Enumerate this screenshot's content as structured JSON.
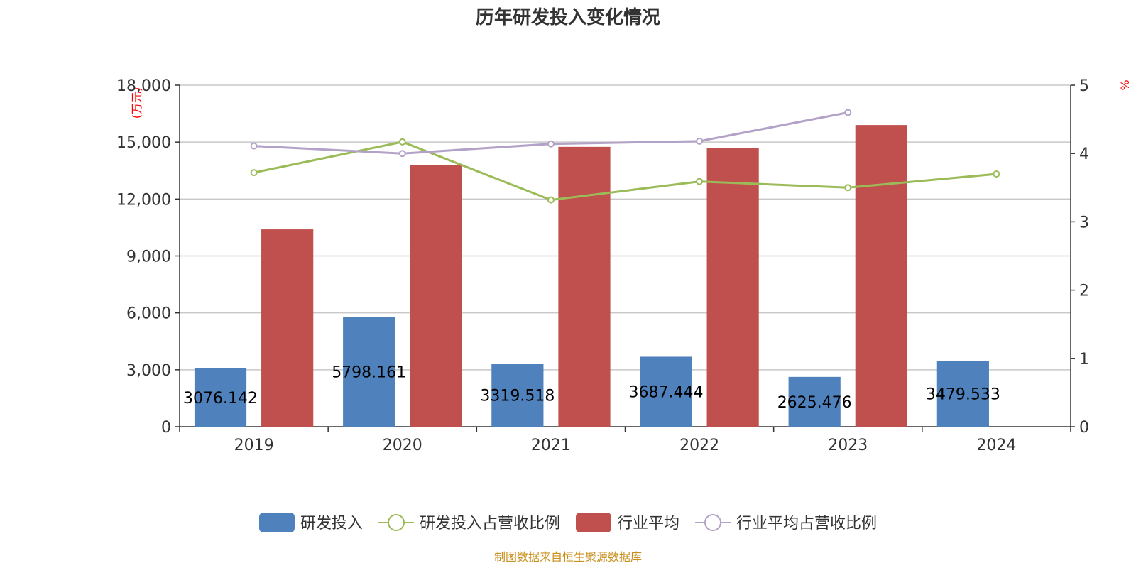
{
  "chart_data": {
    "type": "bar",
    "title": "历年研发投入变化情况",
    "categories": [
      "2019",
      "2020",
      "2021",
      "2022",
      "2023",
      "2024"
    ],
    "y_left": {
      "unit": "(万元)",
      "ylim": [
        0,
        18000
      ],
      "ticks": [
        "0",
        "3,000",
        "6,000",
        "9,000",
        "12,000",
        "15,000",
        "18,000"
      ]
    },
    "y_right": {
      "unit": "%",
      "ylim": [
        0,
        5
      ],
      "ticks": [
        "0",
        "1",
        "2",
        "3",
        "4",
        "5"
      ]
    },
    "series": [
      {
        "name": "研发投入",
        "type": "bar",
        "axis": "left",
        "color": "#4f81bd",
        "values": [
          3076.142,
          5798.161,
          3319.518,
          3687.444,
          2625.476,
          3479.533
        ],
        "labels": [
          "3076.142",
          "5798.161",
          "3319.518",
          "3687.444",
          "2625.476",
          "3479.533"
        ]
      },
      {
        "name": "研发投入占营收比例",
        "type": "line",
        "axis": "right",
        "color": "#9bbb59",
        "values": [
          3.72,
          4.17,
          3.32,
          3.59,
          3.5,
          3.7
        ]
      },
      {
        "name": "行业平均",
        "type": "bar",
        "axis": "left",
        "color": "#c0504d",
        "values": [
          10400,
          13800,
          14750,
          14700,
          15900,
          null
        ]
      },
      {
        "name": "行业平均占营收比例",
        "type": "line",
        "axis": "right",
        "color": "#b3a2c7",
        "values": [
          4.11,
          4.0,
          4.14,
          4.18,
          4.6,
          null
        ]
      }
    ],
    "grid": true,
    "legend_position": "bottom",
    "source": "制图数据来自恒生聚源数据库"
  }
}
